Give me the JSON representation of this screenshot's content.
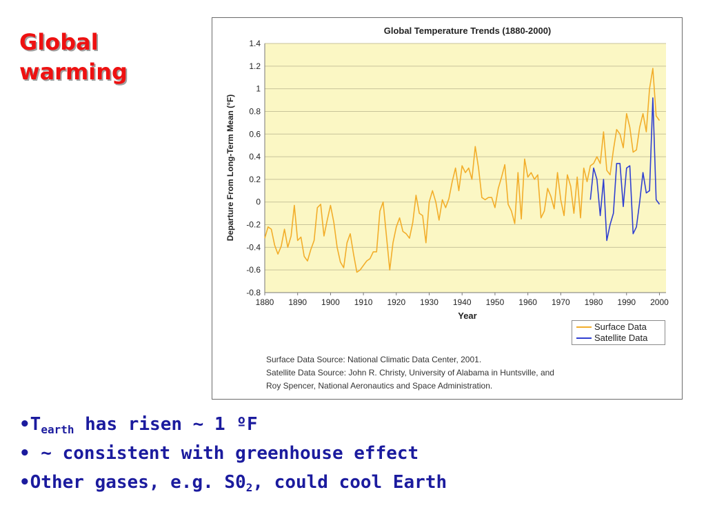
{
  "slide": {
    "title_line1": "Global",
    "title_line2": "warming",
    "bullets": [
      {
        "bullet": "•",
        "pre": "T",
        "sub": "earth",
        "post": " has risen ~ 1 ºF"
      },
      {
        "bullet": "•",
        "pre": " ~ consistent with greenhouse effect",
        "sub": "",
        "post": ""
      },
      {
        "bullet": "•",
        "pre": "Other gases, e.g. S0",
        "sub": "2",
        "post": ", could cool Earth"
      }
    ]
  },
  "colors": {
    "title": "#ee1111",
    "bullets": "#1b1b9e",
    "plot_background": "#fbf7c4",
    "surface": "#f2ad2a",
    "satellite": "#2f3fd1",
    "grid": "#c8c39a"
  },
  "chart_data": {
    "type": "line",
    "title": "Global Temperature Trends (1880-2000)",
    "xlabel": "Year",
    "ylabel": "Departure From Long-Term Mean (°F)",
    "xlim": [
      1880,
      2002
    ],
    "ylim": [
      -0.8,
      1.4
    ],
    "xticks": [
      1880,
      1890,
      1900,
      1910,
      1920,
      1930,
      1940,
      1950,
      1960,
      1970,
      1980,
      1990,
      2000
    ],
    "yticks": [
      -0.8,
      -0.6,
      -0.4,
      -0.2,
      0,
      0.2,
      0.4,
      0.6,
      0.8,
      1,
      1.2,
      1.4
    ],
    "ytick_labels": [
      "-0.8",
      "-0.6",
      "-0.4",
      "-0.2",
      "0",
      "0.2",
      "0.4",
      "0.6",
      "0.8",
      "1",
      "1.2",
      "1.4"
    ],
    "grid": true,
    "legend": "bottom-right",
    "series": [
      {
        "name": "Surface Data",
        "color": "#f2ad2a",
        "x": [
          1880,
          1881,
          1882,
          1883,
          1884,
          1885,
          1886,
          1887,
          1888,
          1889,
          1890,
          1891,
          1892,
          1893,
          1894,
          1895,
          1896,
          1897,
          1898,
          1899,
          1900,
          1901,
          1902,
          1903,
          1904,
          1905,
          1906,
          1907,
          1908,
          1909,
          1910,
          1911,
          1912,
          1913,
          1914,
          1915,
          1916,
          1917,
          1918,
          1919,
          1920,
          1921,
          1922,
          1923,
          1924,
          1925,
          1926,
          1927,
          1928,
          1929,
          1930,
          1931,
          1932,
          1933,
          1934,
          1935,
          1936,
          1937,
          1938,
          1939,
          1940,
          1941,
          1942,
          1943,
          1944,
          1945,
          1946,
          1947,
          1948,
          1949,
          1950,
          1951,
          1952,
          1953,
          1954,
          1955,
          1956,
          1957,
          1958,
          1959,
          1960,
          1961,
          1962,
          1963,
          1964,
          1965,
          1966,
          1967,
          1968,
          1969,
          1970,
          1971,
          1972,
          1973,
          1974,
          1975,
          1976,
          1977,
          1978,
          1979,
          1980,
          1981,
          1982,
          1983,
          1984,
          1985,
          1986,
          1987,
          1988,
          1989,
          1990,
          1991,
          1992,
          1993,
          1994,
          1995,
          1996,
          1997,
          1998,
          1999,
          2000
        ],
        "values": [
          -0.32,
          -0.22,
          -0.24,
          -0.38,
          -0.46,
          -0.39,
          -0.24,
          -0.4,
          -0.3,
          -0.03,
          -0.34,
          -0.31,
          -0.48,
          -0.52,
          -0.42,
          -0.34,
          -0.05,
          -0.02,
          -0.3,
          -0.16,
          -0.03,
          -0.18,
          -0.4,
          -0.53,
          -0.58,
          -0.36,
          -0.28,
          -0.46,
          -0.62,
          -0.6,
          -0.56,
          -0.52,
          -0.5,
          -0.44,
          -0.44,
          -0.08,
          0.0,
          -0.3,
          -0.6,
          -0.36,
          -0.22,
          -0.14,
          -0.26,
          -0.28,
          -0.32,
          -0.18,
          0.06,
          -0.1,
          -0.12,
          -0.36,
          0.0,
          0.1,
          0.0,
          -0.16,
          0.02,
          -0.05,
          0.03,
          0.18,
          0.3,
          0.1,
          0.32,
          0.26,
          0.3,
          0.2,
          0.49,
          0.3,
          0.04,
          0.02,
          0.04,
          0.04,
          -0.05,
          0.12,
          0.22,
          0.33,
          -0.02,
          -0.08,
          -0.19,
          0.26,
          -0.15,
          0.38,
          0.22,
          0.26,
          0.2,
          0.24,
          -0.14,
          -0.08,
          0.12,
          0.05,
          -0.06,
          0.26,
          0.02,
          -0.12,
          0.24,
          0.14,
          -0.1,
          0.22,
          -0.14,
          0.3,
          0.18,
          0.32,
          0.34,
          0.4,
          0.34,
          0.62,
          0.28,
          0.24,
          0.46,
          0.64,
          0.6,
          0.48,
          0.78,
          0.66,
          0.44,
          0.46,
          0.66,
          0.78,
          0.62,
          1.0,
          1.18,
          0.76,
          0.72
        ]
      },
      {
        "name": "Satellite Data",
        "color": "#2f3fd1",
        "x": [
          1979,
          1980,
          1981,
          1982,
          1983,
          1984,
          1985,
          1986,
          1987,
          1988,
          1989,
          1990,
          1991,
          1992,
          1993,
          1994,
          1995,
          1996,
          1997,
          1998,
          1999,
          2000
        ],
        "values": [
          0.02,
          0.3,
          0.2,
          -0.12,
          0.2,
          -0.34,
          -0.2,
          -0.1,
          0.34,
          0.34,
          -0.04,
          0.3,
          0.32,
          -0.28,
          -0.22,
          0.0,
          0.26,
          0.08,
          0.1,
          0.92,
          0.02,
          -0.02
        ]
      }
    ],
    "sources": [
      "Surface Data Source: National Climatic Data Center, 2001.",
      "Satellite Data Source: John R. Christy, University of Alabama in Huntsville, and",
      "Roy Spencer, National Aeronautics and Space Administration."
    ]
  }
}
